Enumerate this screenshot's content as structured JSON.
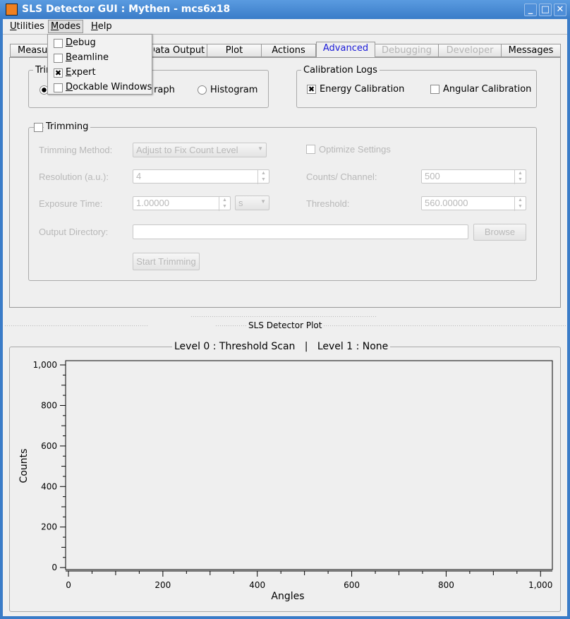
{
  "window": {
    "title": "SLS Detector GUI : Mythen - mcs6x18",
    "controls": [
      "minimize",
      "maximize",
      "close"
    ]
  },
  "menubar": {
    "items": [
      {
        "label": "Utilities",
        "mn": "U",
        "rest": "tilities"
      },
      {
        "label": "Modes",
        "mn": "M",
        "rest": "odes"
      },
      {
        "label": "Help",
        "mn": "H",
        "rest": "elp"
      }
    ]
  },
  "modes_menu": {
    "items": [
      {
        "label": "Debug",
        "mn": "D",
        "rest": "ebug",
        "checked": false
      },
      {
        "label": "Beamline",
        "mn": "B",
        "rest": "eamline",
        "checked": false
      },
      {
        "label": "Expert",
        "mn": "E",
        "rest": "xpert",
        "checked": true
      },
      {
        "label": "Dockable Windows",
        "mn": "D",
        "rest": "ockable Windows",
        "checked": false
      }
    ]
  },
  "tabs": [
    {
      "label": "Measurement"
    },
    {
      "label": "Data Output"
    },
    {
      "label": "Plot"
    },
    {
      "label": "Actions"
    },
    {
      "label": "Advanced",
      "selected": true
    },
    {
      "label": "Debugging",
      "disabled": true
    },
    {
      "label": "Developer",
      "disabled": true
    },
    {
      "label": "Messages"
    }
  ],
  "trimbits": {
    "title": "Trimbits Plot",
    "options": [
      "",
      "Graph",
      "Histogram"
    ],
    "selected": 0
  },
  "calibration": {
    "title": "Calibration Logs",
    "energy": {
      "label": "Energy Calibration",
      "checked": true
    },
    "angular": {
      "label": "Angular Calibration",
      "checked": false
    }
  },
  "trimming": {
    "title": "Trimming",
    "checked": false,
    "method_label": "Trimming Method:",
    "method_value": "Adjust to Fix Count Level",
    "optimize_label": "Optimize Settings",
    "resolution_label": "Resolution (a.u.):",
    "resolution_value": "4",
    "counts_label": "Counts/ Channel:",
    "counts_value": "500",
    "exposure_label": "Exposure Time:",
    "exposure_value": "1.00000",
    "exposure_unit": "s",
    "threshold_label": "Threshold:",
    "threshold_value": "560.00000",
    "outdir_label": "Output Directory:",
    "outdir_value": "",
    "browse_label": "Browse",
    "start_label": "Start Trimming"
  },
  "plot_dock": {
    "title": "SLS Detector Plot",
    "group_title": "Level 0 : Threshold Scan   |   Level 1 : None"
  },
  "chart_data": {
    "type": "line",
    "xlabel": "Angles",
    "ylabel": "Counts",
    "xlim": [
      -6,
      1025
    ],
    "ylim": [
      -10,
      1021
    ],
    "xticks": [
      "0",
      "200",
      "400",
      "600",
      "800",
      "1,000"
    ],
    "yticks": [
      "0",
      "200",
      "400",
      "600",
      "800",
      "1,000"
    ],
    "xtick_values": [
      0,
      200,
      400,
      600,
      800,
      1000
    ],
    "ytick_values": [
      0,
      200,
      400,
      600,
      800,
      1000
    ],
    "series": [],
    "grid": false
  }
}
